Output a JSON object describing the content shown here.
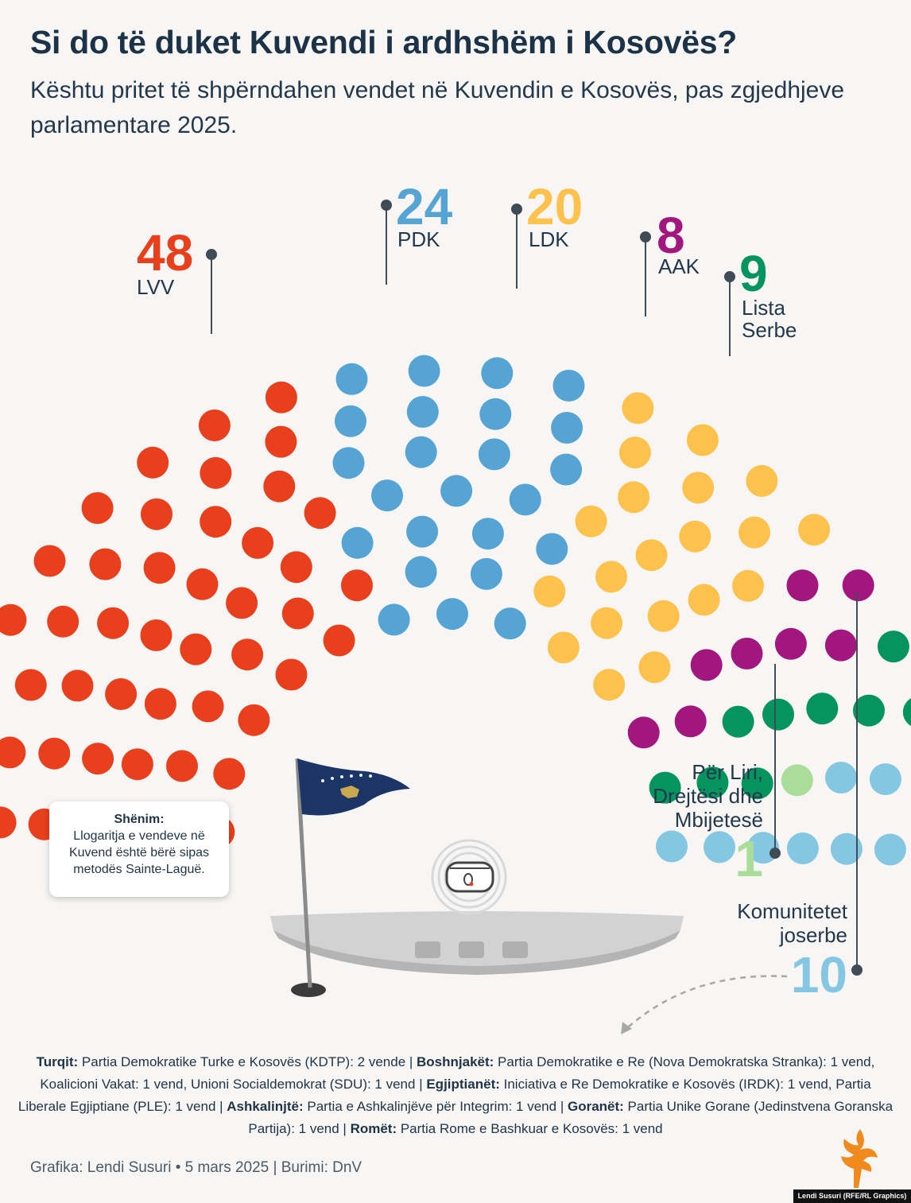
{
  "title": "Si do të duket Kuvendi i ardhshëm i Kosovës?",
  "subtitle": "Kështu pritet të shpërndahen vendet në Kuvendin e Kosovës, pas zgjedhjeve parlamentare 2025.",
  "chart_data": {
    "type": "parliament",
    "total_seats": 120,
    "series": [
      {
        "name": "LVV",
        "value": 48,
        "color": "#e8401c"
      },
      {
        "name": "PDK",
        "value": 24,
        "color": "#55a4d3"
      },
      {
        "name": "LDK",
        "value": 20,
        "color": "#fdc24d"
      },
      {
        "name": "AAK",
        "value": 8,
        "color": "#a2177e"
      },
      {
        "name": "Lista Serbe",
        "value": 9,
        "color": "#05935e"
      },
      {
        "name": "Për Liri, Drejtësi dhe Mbijetesë",
        "value": 1,
        "color": "#a9dd99"
      },
      {
        "name": "Komunitetet joserbe",
        "value": 10,
        "color": "#85c6e2"
      }
    ],
    "labels": [
      {
        "value": "48",
        "name_lines": [
          "LVV"
        ]
      },
      {
        "value": "24",
        "name_lines": [
          "PDK"
        ]
      },
      {
        "value": "20",
        "name_lines": [
          "LDK"
        ]
      },
      {
        "value": "8",
        "name_lines": [
          "AAK"
        ]
      },
      {
        "value": "9",
        "name_lines": [
          "Lista",
          "Serbe"
        ]
      },
      {
        "value": "1",
        "name_lines": [
          "Për Liri,",
          "Drejtësi dhe",
          "Mbijetesë"
        ]
      },
      {
        "value": "10",
        "name_lines": [
          "Komunitetet",
          "joserbe"
        ]
      }
    ]
  },
  "note": {
    "title": "Shënim:",
    "body": "Llogaritja e vendeve në Kuvend është bërë sipas metodës Sainte-Laguë."
  },
  "footnote": [
    {
      "b": "Turqit:",
      "t": " Partia Demokratike Turke e Kosovës (KDTP): 2 vende | "
    },
    {
      "b": "Boshnjakët:",
      "t": " Partia Demokratike e Re (Nova Demokratska Stranka): 1 vend, Koalicioni Vakat: 1 vend, Unioni Socialdemokrat (SDU): 1 vend | "
    },
    {
      "b": "Egjiptianët:",
      "t": " Iniciativa e Re Demokratike e Kosovës (IRDK): 1 vend, Partia Liberale Egjiptiane (PLE): 1 vend | "
    },
    {
      "b": "Ashkalinjtë:",
      "t": " Partia e Ashkalinjëve për Integrim: 1 vend | "
    },
    {
      "b": "Goranët:",
      "t": " Partia Unike Gorane (Jedinstvena Goranska Partija): 1 vend | "
    },
    {
      "b": "Romët:",
      "t": " Partia Rome e Bashkuar e Kosovës: 1 vend"
    }
  ],
  "credit": "Grafika: Lendi Susuri • 5 mars 2025 | Burimi: DnV",
  "watermark": "Lendi Susuri (RFE/RL Graphics)"
}
